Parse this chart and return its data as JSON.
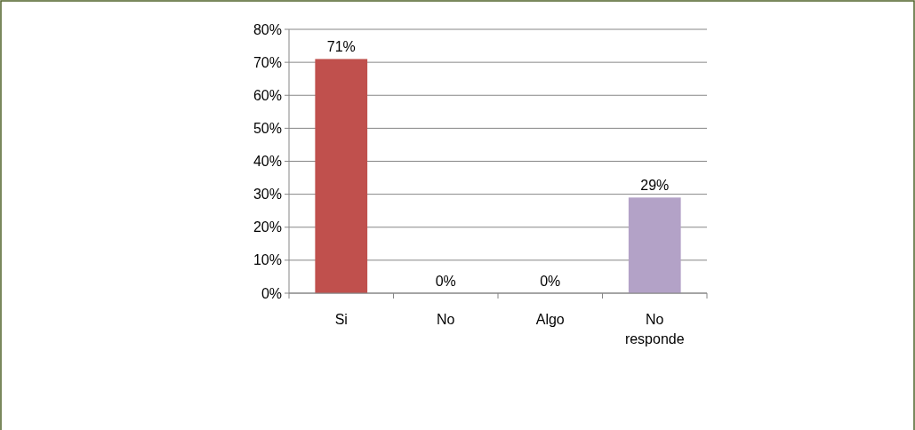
{
  "chart_data": {
    "type": "bar",
    "categories": [
      "Si",
      "No",
      "Algo",
      "No responde"
    ],
    "values": [
      71,
      0,
      0,
      29
    ],
    "colors": [
      "#c0504d",
      "#9bbb59",
      "#8064a2",
      "#b3a2c7"
    ],
    "ylim": [
      0,
      80
    ],
    "yticks": [
      {
        "value": 0,
        "label": "0%"
      },
      {
        "value": 10,
        "label": "10%"
      },
      {
        "value": 20,
        "label": "20%"
      },
      {
        "value": 30,
        "label": "30%"
      },
      {
        "value": 40,
        "label": "40%"
      },
      {
        "value": 50,
        "label": "50%"
      },
      {
        "value": 60,
        "label": "60%"
      },
      {
        "value": 70,
        "label": "70%"
      },
      {
        "value": 80,
        "label": "80%"
      }
    ],
    "grid": "y",
    "value_labels": [
      "71%",
      "0%",
      "0%",
      "29%"
    ]
  }
}
